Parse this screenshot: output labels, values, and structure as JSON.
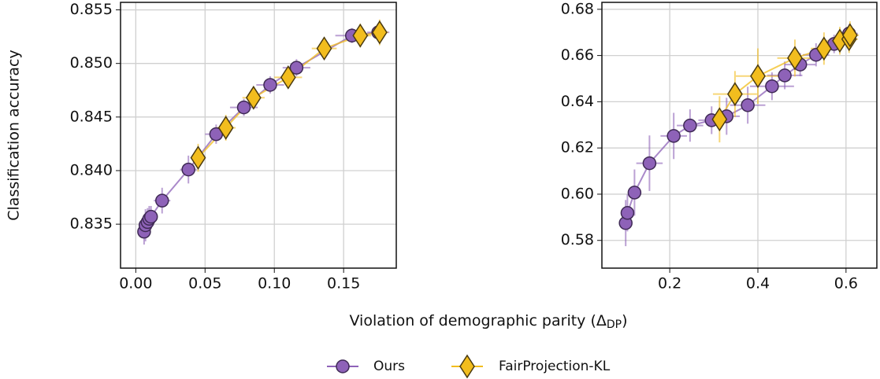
{
  "figure": {
    "ylabel": "Classification accuracy",
    "xlabel": {
      "text": "Violation of demographic parity (Δ",
      "subscript": "DP",
      "tail": ")"
    }
  },
  "chart_data": [
    {
      "type": "scatter",
      "grid": true,
      "xlim": [
        -0.011,
        0.188
      ],
      "ylim": [
        0.8309,
        0.8557
      ],
      "xticks": [
        {
          "value": 0,
          "label": "0.00"
        },
        0.05,
        {
          "value": 0.1,
          "label": "0.10"
        },
        0.15
      ],
      "yticks": [
        0.835,
        {
          "value": 0.84,
          "label": "0.840"
        },
        0.845,
        {
          "value": 0.85,
          "label": "0.850"
        },
        0.855
      ],
      "series": [
        {
          "name": "Ours",
          "color": "#8e62b8",
          "marker": "circle",
          "x": [
            0.006,
            0.007,
            0.0085,
            0.0097,
            0.011,
            0.019,
            0.038,
            0.058,
            0.078,
            0.097,
            0.116,
            0.156,
            0.175
          ],
          "values": [
            0.8343,
            0.8349,
            0.8352,
            0.8355,
            0.8357,
            0.8372,
            0.8401,
            0.8434,
            0.8459,
            0.848,
            0.8496,
            0.8526,
            0.8529
          ],
          "xerr": [
            0.003,
            0.004,
            0.004,
            0.004,
            0.004,
            0.006,
            0.006,
            0.008,
            0.01,
            0.01,
            0.01,
            0.012,
            0.008
          ],
          "yerr": [
            0.0012,
            0.0015,
            0.0013,
            0.0012,
            0.001,
            0.0012,
            0.0013,
            0.0009,
            0.0008,
            0.0008,
            0.0008,
            0.0007,
            0.0006
          ]
        },
        {
          "name": "FairProjection-KL",
          "color": "#f2bd1e",
          "marker": "diamond",
          "x": [
            0.045,
            0.065,
            0.085,
            0.11,
            0.136,
            0.162,
            0.176
          ],
          "values": [
            0.8412,
            0.844,
            0.8468,
            0.8487,
            0.8514,
            0.8526,
            0.8529
          ],
          "xerr": [
            0.004,
            0.007,
            0.008,
            0.01,
            0.009,
            0.008,
            0.006
          ],
          "yerr": [
            0.0013,
            0.0012,
            0.0009,
            0.0008,
            0.0009,
            0.0011,
            0.0012
          ]
        }
      ]
    },
    {
      "type": "scatter",
      "grid": true,
      "xlim": [
        0.046,
        0.67
      ],
      "ylim": [
        0.568,
        0.683
      ],
      "xticks": [
        0.2,
        0.4,
        0.6
      ],
      "yticks": [
        0.58,
        {
          "value": 0.6,
          "label": "0.60"
        },
        0.62,
        0.64,
        0.66,
        0.68
      ],
      "series": [
        {
          "name": "Ours",
          "color": "#8e62b8",
          "marker": "circle",
          "x": [
            0.1,
            0.104,
            0.12,
            0.154,
            0.209,
            0.246,
            0.295,
            0.329,
            0.377,
            0.432,
            0.461,
            0.496,
            0.532,
            0.573,
            0.607
          ],
          "values": [
            0.5875,
            0.5919,
            0.6007,
            0.6134,
            0.6252,
            0.6297,
            0.632,
            0.6337,
            0.6385,
            0.6467,
            0.6514,
            0.6561,
            0.6603,
            0.665,
            0.6695
          ],
          "xerr": [
            0.01,
            0.01,
            0.015,
            0.03,
            0.03,
            0.03,
            0.03,
            0.03,
            0.04,
            0.05,
            0.04,
            0.035,
            0.03,
            0.025,
            0.02
          ],
          "yerr": [
            0.01,
            0.008,
            0.01,
            0.012,
            0.01,
            0.007,
            0.006,
            0.008,
            0.008,
            0.006,
            0.006,
            0.005,
            0.005,
            0.004,
            0.004
          ]
        },
        {
          "name": "FairProjection-KL",
          "color": "#f2bd1e",
          "marker": "diamond",
          "x": [
            0.313,
            0.348,
            0.4,
            0.484,
            0.55,
            0.586,
            0.607,
            0.609
          ],
          "values": [
            0.6324,
            0.6433,
            0.6511,
            0.6589,
            0.663,
            0.6664,
            0.6671,
            0.6688
          ],
          "xerr": [
            0.03,
            0.05,
            0.05,
            0.04,
            0.03,
            0.03,
            0.02,
            0.02
          ],
          "yerr": [
            0.01,
            0.01,
            0.012,
            0.008,
            0.007,
            0.006,
            0.006,
            0.006
          ]
        }
      ]
    }
  ]
}
